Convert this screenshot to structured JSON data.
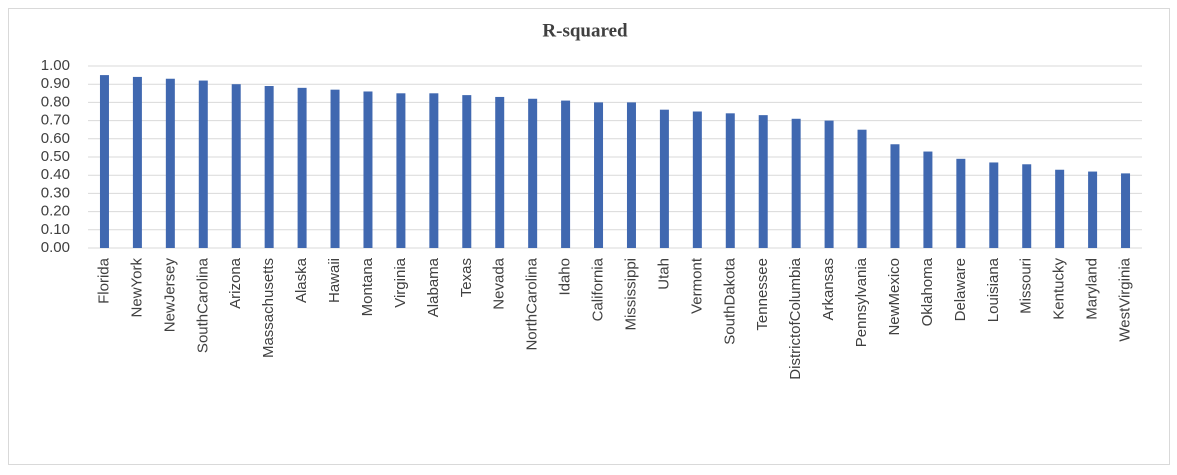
{
  "chart_data": {
    "type": "bar",
    "title": "R-squared",
    "categories": [
      "Florida",
      "NewYork",
      "NewJersey",
      "SouthCarolina",
      "Arizona",
      "Massachusetts",
      "Alaska",
      "Hawaii",
      "Montana",
      "Virginia",
      "Alabama",
      "Texas",
      "Nevada",
      "NorthCarolina",
      "Idaho",
      "California",
      "Mississippi",
      "Utah",
      "Vermont",
      "SouthDakota",
      "Tennessee",
      "DistrictofColumbia",
      "Arkansas",
      "Pennsylvania",
      "NewMexico",
      "Oklahoma",
      "Delaware",
      "Louisiana",
      "Missouri",
      "Kentucky",
      "Maryland",
      "WestVirginia"
    ],
    "values": [
      0.95,
      0.94,
      0.93,
      0.92,
      0.9,
      0.89,
      0.88,
      0.87,
      0.86,
      0.85,
      0.85,
      0.84,
      0.83,
      0.82,
      0.81,
      0.8,
      0.8,
      0.76,
      0.75,
      0.74,
      0.73,
      0.71,
      0.7,
      0.65,
      0.57,
      0.53,
      0.49,
      0.47,
      0.46,
      0.43,
      0.42,
      0.41
    ],
    "color": "#4068b0",
    "ylim": [
      0,
      1
    ],
    "yticks": [
      {
        "value": 0,
        "label": "0.00"
      },
      {
        "value": 0.1,
        "label": "0.10"
      },
      {
        "value": 0.2,
        "label": "0.20"
      },
      {
        "value": 0.3,
        "label": "0.30"
      },
      {
        "value": 0.4,
        "label": "0.40"
      },
      {
        "value": 0.5,
        "label": "0.50"
      },
      {
        "value": 0.6,
        "label": "0.60"
      },
      {
        "value": 0.7,
        "label": "0.70"
      },
      {
        "value": 0.8,
        "label": "0.80"
      },
      {
        "value": 0.9,
        "label": "0.90"
      },
      {
        "value": 1,
        "label": "1.00"
      }
    ],
    "grid": true
  }
}
